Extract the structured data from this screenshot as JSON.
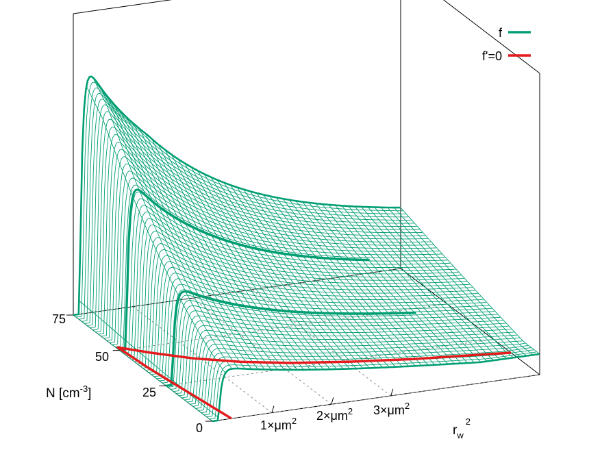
{
  "chart_data": {
    "type": "surface",
    "title": "",
    "legend": {
      "placement": "top-right",
      "entries": [
        {
          "label": "f",
          "color": "#009e73"
        },
        {
          "label": "f'=0",
          "color": "#e41a1c"
        }
      ]
    },
    "x_axis": {
      "label_base": "r",
      "label_sub": "w",
      "label_sup": "2",
      "ticks": [
        {
          "value": 1,
          "text": "1×μm",
          "sup": "2"
        },
        {
          "value": 2,
          "text": "2×μm",
          "sup": "2"
        },
        {
          "value": 3,
          "text": "3×μm",
          "sup": "2"
        }
      ],
      "range": [
        0,
        5.5
      ]
    },
    "y_axis": {
      "label_base": "N [cm",
      "label_sup": "-3",
      "label_end": "]",
      "ticks": [
        {
          "value": 0,
          "text": "0"
        },
        {
          "value": 25,
          "text": "25"
        },
        {
          "value": 50,
          "text": "50"
        },
        {
          "value": 75,
          "text": "75"
        }
      ],
      "range": [
        0,
        75
      ]
    },
    "z_axis": {
      "range": [
        0,
        1
      ]
    },
    "grid": true,
    "series": [
      {
        "name": "f",
        "kind": "surface-wireframe",
        "color": "#009e73"
      },
      {
        "name": "f'=0",
        "kind": "base-curve",
        "color": "#e41a1c",
        "points": [
          [
            0.32,
            0
          ],
          [
            0.16,
            25
          ],
          [
            0.08,
            38
          ],
          [
            0.03,
            52
          ],
          [
            0.12,
            50.5
          ],
          [
            0.4,
            46
          ],
          [
            0.9,
            39
          ],
          [
            1.5,
            33
          ],
          [
            2.2,
            28
          ],
          [
            3.0,
            24
          ],
          [
            4.0,
            20
          ],
          [
            5.0,
            17
          ],
          [
            5.5,
            15.5
          ]
        ]
      }
    ]
  }
}
